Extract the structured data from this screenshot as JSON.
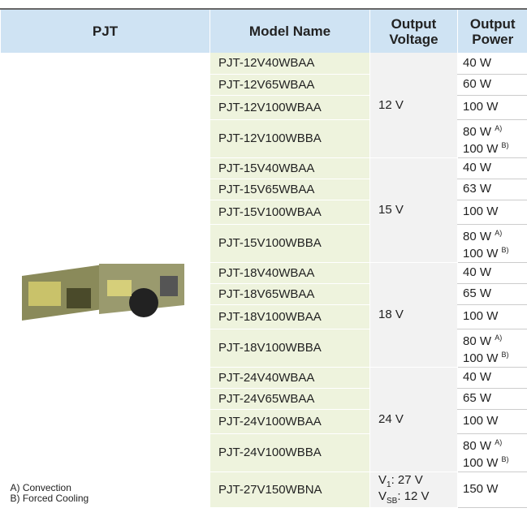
{
  "header": {
    "cells": [
      "PJT",
      "Model Name",
      "Output Voltage",
      "Output Power"
    ]
  },
  "notes": [
    "A) Convection",
    "B) Forced Cooling"
  ],
  "groups": [
    {
      "voltage": [
        {
          "base": "12 V"
        }
      ],
      "rows": [
        {
          "model": "PJT-12V40WBAA",
          "power": [
            {
              "text": "40 W"
            }
          ]
        },
        {
          "model": "PJT-12V65WBAA",
          "power": [
            {
              "text": "60 W"
            }
          ]
        },
        {
          "model": "PJT-12V100WBAA",
          "power": [
            {
              "text": "100 W"
            }
          ]
        },
        {
          "model": "PJT-12V100WBBA",
          "power": [
            {
              "text": "80 W",
              "note": "A)"
            },
            {
              "text": "100 W",
              "note": "B)"
            }
          ]
        }
      ]
    },
    {
      "voltage": [
        {
          "base": "15 V"
        }
      ],
      "rows": [
        {
          "model": "PJT-15V40WBAA",
          "power": [
            {
              "text": "40 W"
            }
          ]
        },
        {
          "model": "PJT-15V65WBAA",
          "power": [
            {
              "text": "63 W"
            }
          ]
        },
        {
          "model": "PJT-15V100WBAA",
          "power": [
            {
              "text": "100 W"
            }
          ]
        },
        {
          "model": "PJT-15V100WBBA",
          "power": [
            {
              "text": "80 W",
              "note": "A)"
            },
            {
              "text": "100 W",
              "note": "B)"
            }
          ]
        }
      ]
    },
    {
      "voltage": [
        {
          "base": "18 V"
        }
      ],
      "rows": [
        {
          "model": "PJT-18V40WBAA",
          "power": [
            {
              "text": "40 W"
            }
          ]
        },
        {
          "model": "PJT-18V65WBAA",
          "power": [
            {
              "text": "65 W"
            }
          ]
        },
        {
          "model": "PJT-18V100WBAA",
          "power": [
            {
              "text": "100 W"
            }
          ]
        },
        {
          "model": "PJT-18V100WBBA",
          "power": [
            {
              "text": "80 W",
              "note": "A)"
            },
            {
              "text": "100 W",
              "note": "B)"
            }
          ]
        }
      ]
    },
    {
      "voltage": [
        {
          "base": "24 V"
        }
      ],
      "rows": [
        {
          "model": "PJT-24V40WBAA",
          "power": [
            {
              "text": "40 W"
            }
          ]
        },
        {
          "model": "PJT-24V65WBAA",
          "power": [
            {
              "text": "65 W"
            }
          ]
        },
        {
          "model": "PJT-24V100WBAA",
          "power": [
            {
              "text": "100 W"
            }
          ]
        },
        {
          "model": "PJT-24V100WBBA",
          "power": [
            {
              "text": "80 W",
              "note": "A)"
            },
            {
              "text": "100 W",
              "note": "B)"
            }
          ]
        }
      ]
    },
    {
      "voltage": [
        {
          "base": "V",
          "sub": "1",
          "rest": ": 27 V"
        },
        {
          "base": "V",
          "sub": "SB",
          "rest": ": 12 V"
        }
      ],
      "rows": [
        {
          "model": "PJT-27V150WBNA",
          "power": [
            {
              "text": "150 W"
            }
          ]
        }
      ]
    }
  ]
}
